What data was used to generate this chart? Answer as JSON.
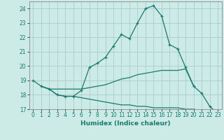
{
  "xlabel": "Humidex (Indice chaleur)",
  "background_color": "#cceae6",
  "grid_color": "#aacccc",
  "line_color": "#1a7a6e",
  "xlim": [
    -0.5,
    23.5
  ],
  "ylim": [
    17,
    24.5
  ],
  "yticks": [
    17,
    18,
    19,
    20,
    21,
    22,
    23,
    24
  ],
  "xticks": [
    0,
    1,
    2,
    3,
    4,
    5,
    6,
    7,
    8,
    9,
    10,
    11,
    12,
    13,
    14,
    15,
    16,
    17,
    18,
    19,
    20,
    21,
    22,
    23
  ],
  "series": [
    {
      "x": [
        0,
        1,
        2,
        3,
        4,
        5,
        6,
        7,
        8,
        9,
        10,
        11,
        12,
        13,
        14,
        15,
        16,
        17,
        18,
        19,
        20,
        21,
        22,
        23
      ],
      "y": [
        19.0,
        18.6,
        18.4,
        18.0,
        17.9,
        17.9,
        18.3,
        19.9,
        20.2,
        20.6,
        21.4,
        22.2,
        21.9,
        23.0,
        24.0,
        24.2,
        23.5,
        21.5,
        21.2,
        19.9,
        18.6,
        18.1,
        17.2,
        16.7
      ],
      "marker": true
    },
    {
      "x": [
        1,
        2,
        3,
        4,
        5,
        6,
        7,
        8,
        9,
        10,
        11,
        12,
        13,
        14,
        15,
        16,
        17,
        18,
        19,
        20
      ],
      "y": [
        18.6,
        18.4,
        18.4,
        18.4,
        18.4,
        18.4,
        18.5,
        18.6,
        18.7,
        18.9,
        19.1,
        19.2,
        19.4,
        19.5,
        19.6,
        19.7,
        19.7,
        19.7,
        19.8,
        18.6
      ],
      "marker": false
    },
    {
      "x": [
        1,
        2,
        3,
        4,
        5,
        6,
        7,
        8,
        9,
        10,
        11,
        12,
        13,
        14,
        15,
        16,
        17,
        18,
        19,
        20,
        21,
        22,
        23
      ],
      "y": [
        18.6,
        18.4,
        18.0,
        17.9,
        17.9,
        17.8,
        17.7,
        17.6,
        17.5,
        17.4,
        17.3,
        17.3,
        17.2,
        17.2,
        17.1,
        17.1,
        17.1,
        17.1,
        17.0,
        17.0,
        16.9,
        16.8,
        16.7
      ],
      "marker": false
    }
  ]
}
